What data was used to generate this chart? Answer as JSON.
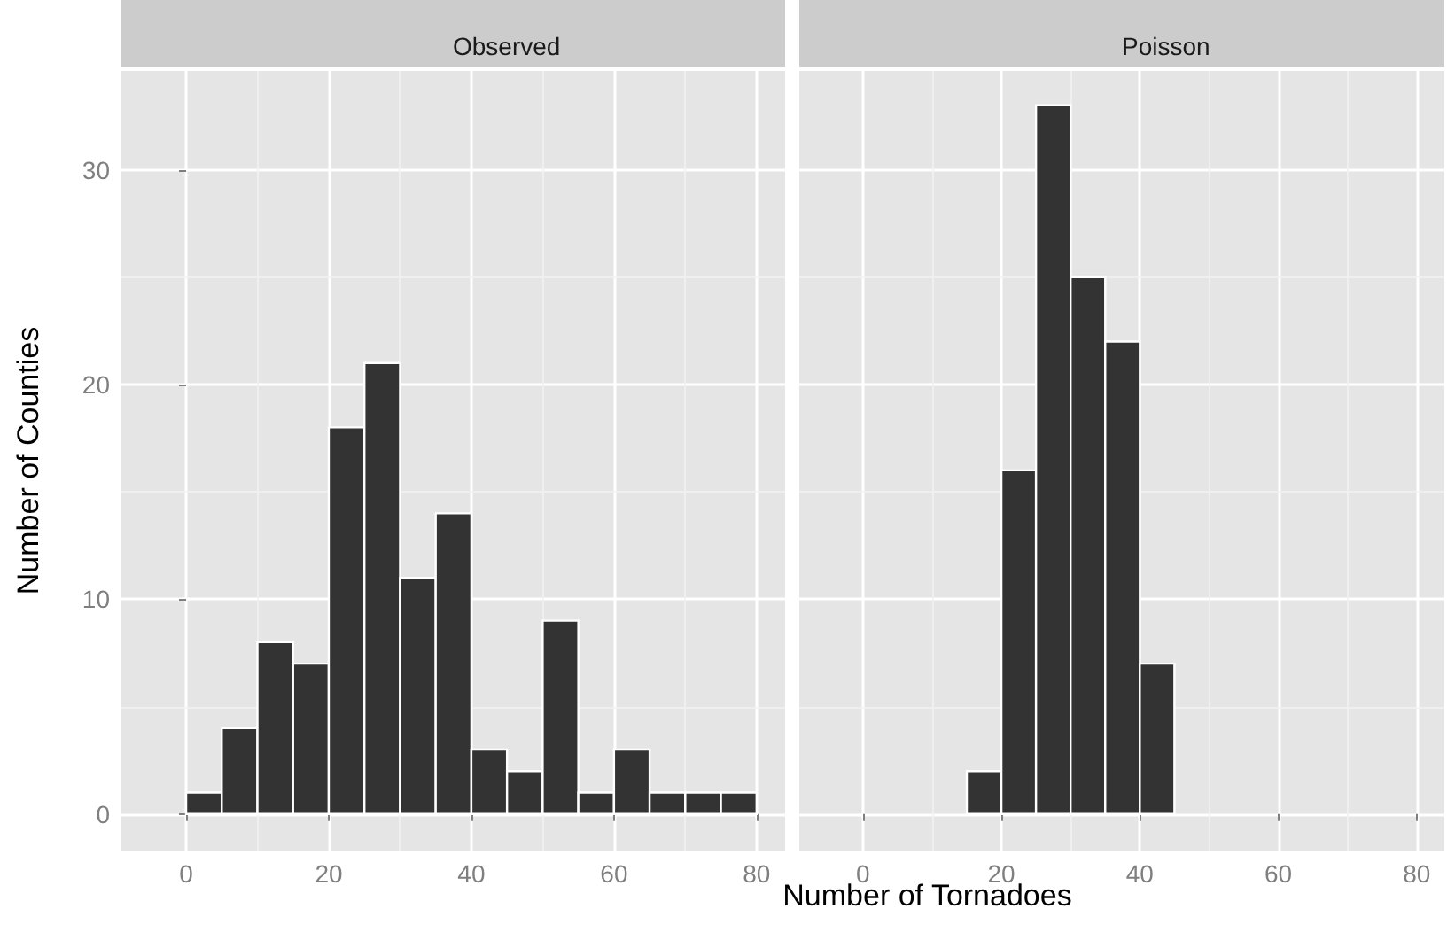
{
  "chart_data": [
    {
      "type": "histogram",
      "title": "Observed",
      "xlabel": "Number of Tornadoes",
      "ylabel": "Number of Counties",
      "bins": [
        0,
        5,
        10,
        15,
        20,
        25,
        30,
        35,
        40,
        45,
        50,
        55,
        60,
        65,
        70,
        75,
        80
      ],
      "values": [
        1,
        4,
        8,
        7,
        18,
        21,
        11,
        14,
        3,
        2,
        9,
        1,
        3,
        1,
        1,
        1
      ],
      "color": "#333333",
      "xlim": [
        -9.2,
        84
      ],
      "xticks": [
        0,
        20,
        40,
        60,
        80
      ],
      "ylim": [
        -1.7,
        34.6
      ],
      "yticks": [
        0,
        10,
        20,
        30
      ],
      "grid": true
    },
    {
      "type": "histogram",
      "title": "Poisson",
      "bins": [
        15,
        20,
        25,
        30,
        35,
        40,
        45
      ],
      "values": [
        2,
        16,
        33,
        25,
        22,
        7
      ],
      "color": "#333333",
      "xlim": [
        -9.2,
        84
      ],
      "xticks": [
        0,
        20,
        40,
        60,
        80
      ],
      "ylim": [
        -1.7,
        34.6
      ],
      "yticks": [
        0,
        10,
        20,
        30
      ],
      "grid": true,
      "tick_labels": "x"
    }
  ]
}
